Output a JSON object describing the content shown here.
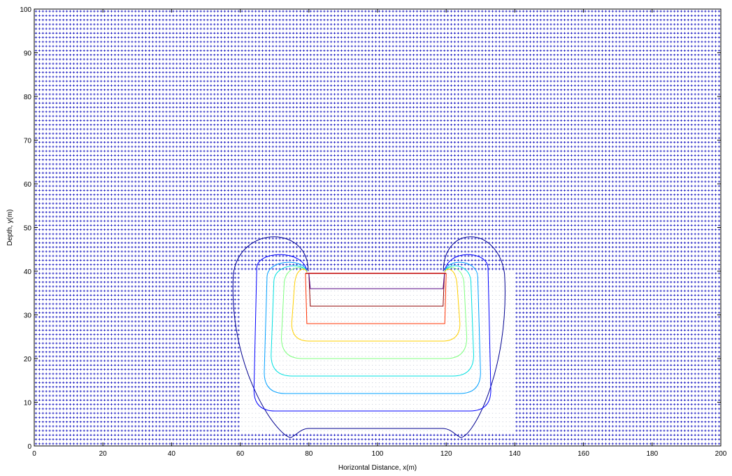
{
  "chart_data": {
    "type": "contour",
    "xlabel": "Horizontal Distance, x(m)",
    "ylabel": "Depth, y(m)",
    "xlim": [
      0,
      200
    ],
    "ylim": [
      0,
      100
    ],
    "x_ticks": [
      0,
      20,
      40,
      60,
      80,
      100,
      120,
      140,
      160,
      180,
      200
    ],
    "y_ticks": [
      0,
      10,
      20,
      30,
      40,
      50,
      60,
      70,
      80,
      90,
      100
    ],
    "x_tick_labels": [
      "0",
      "20",
      "40",
      "60",
      "80",
      "100",
      "120",
      "140",
      "160",
      "180",
      "200"
    ],
    "y_tick_labels": [
      "0",
      "10",
      "20",
      "30",
      "40",
      "50",
      "60",
      "70",
      "80",
      "90",
      "100"
    ],
    "grid": false,
    "vector_field": {
      "x_spacing": 1.0,
      "y_spacing": 1.0,
      "color": "#1010c0"
    },
    "inner_region": {
      "x_min": 79,
      "x_max": 120,
      "y_min": 27,
      "y_max": 39.5
    },
    "contours": [
      {
        "color": "#000090",
        "x_left": 58,
        "x_right": 137,
        "y_bottom": 4,
        "y_top": 49
      },
      {
        "color": "#0000ff",
        "x_left": 64,
        "x_right": 133,
        "y_bottom": 8,
        "y_top": 44
      },
      {
        "color": "#00a0ff",
        "x_left": 67,
        "x_right": 130,
        "y_bottom": 12,
        "y_top": 42
      },
      {
        "color": "#00e0e0",
        "x_left": 69,
        "x_right": 128,
        "y_bottom": 16,
        "y_top": 41
      },
      {
        "color": "#80ff80",
        "x_left": 72,
        "x_right": 126,
        "y_bottom": 20,
        "y_top": 40.5
      },
      {
        "color": "#ffd000",
        "x_left": 75,
        "x_right": 124,
        "y_bottom": 24,
        "y_top": 40
      },
      {
        "color": "#ff3000",
        "x_left": 79,
        "x_right": 120,
        "y_bottom": 28,
        "y_top": 39.5
      },
      {
        "color": "#900000",
        "x_left": 80,
        "x_right": 119.5,
        "y_bottom": 32,
        "y_top": 39.3
      },
      {
        "color": "#500080",
        "x_left": 80,
        "x_right": 119.5,
        "y_bottom": 36,
        "y_top": 39.1
      }
    ],
    "colors": {
      "axes": "#000000",
      "background": "#ffffff"
    }
  }
}
